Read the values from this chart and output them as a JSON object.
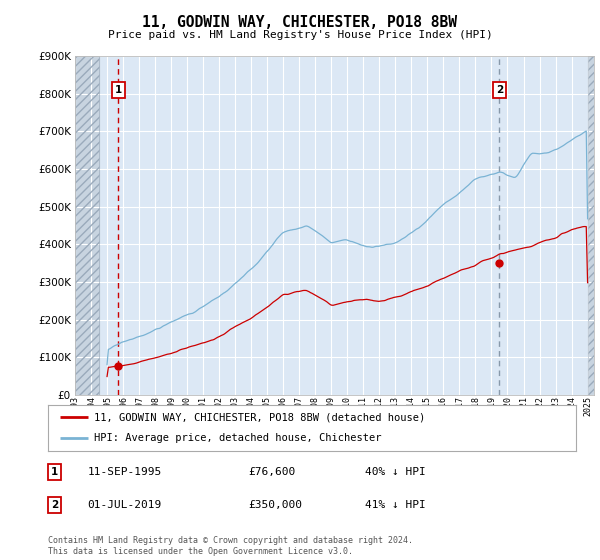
{
  "title": "11, GODWIN WAY, CHICHESTER, PO18 8BW",
  "subtitle": "Price paid vs. HM Land Registry's House Price Index (HPI)",
  "hpi_color": "#7ab3d4",
  "price_color": "#cc0000",
  "vline1_color": "#cc0000",
  "vline1_style": "--",
  "vline2_color": "#8899aa",
  "vline2_style": "--",
  "bg_color": "#dce8f5",
  "grid_color": "#ffffff",
  "hatch_color": "#b0b8c8",
  "ylim": [
    0,
    900000
  ],
  "yticks": [
    0,
    100000,
    200000,
    300000,
    400000,
    500000,
    600000,
    700000,
    800000,
    900000
  ],
  "transaction1_year": 1995.71,
  "transaction1_price": 76600,
  "transaction2_year": 2019.5,
  "transaction2_price": 350000,
  "legend_line1": "11, GODWIN WAY, CHICHESTER, PO18 8BW (detached house)",
  "legend_line2": "HPI: Average price, detached house, Chichester",
  "footer": "Contains HM Land Registry data © Crown copyright and database right 2024.\nThis data is licensed under the Open Government Licence v3.0.",
  "xlim_start": 1993.0,
  "xlim_end": 2025.4,
  "hatch_right_start": 2025.0
}
